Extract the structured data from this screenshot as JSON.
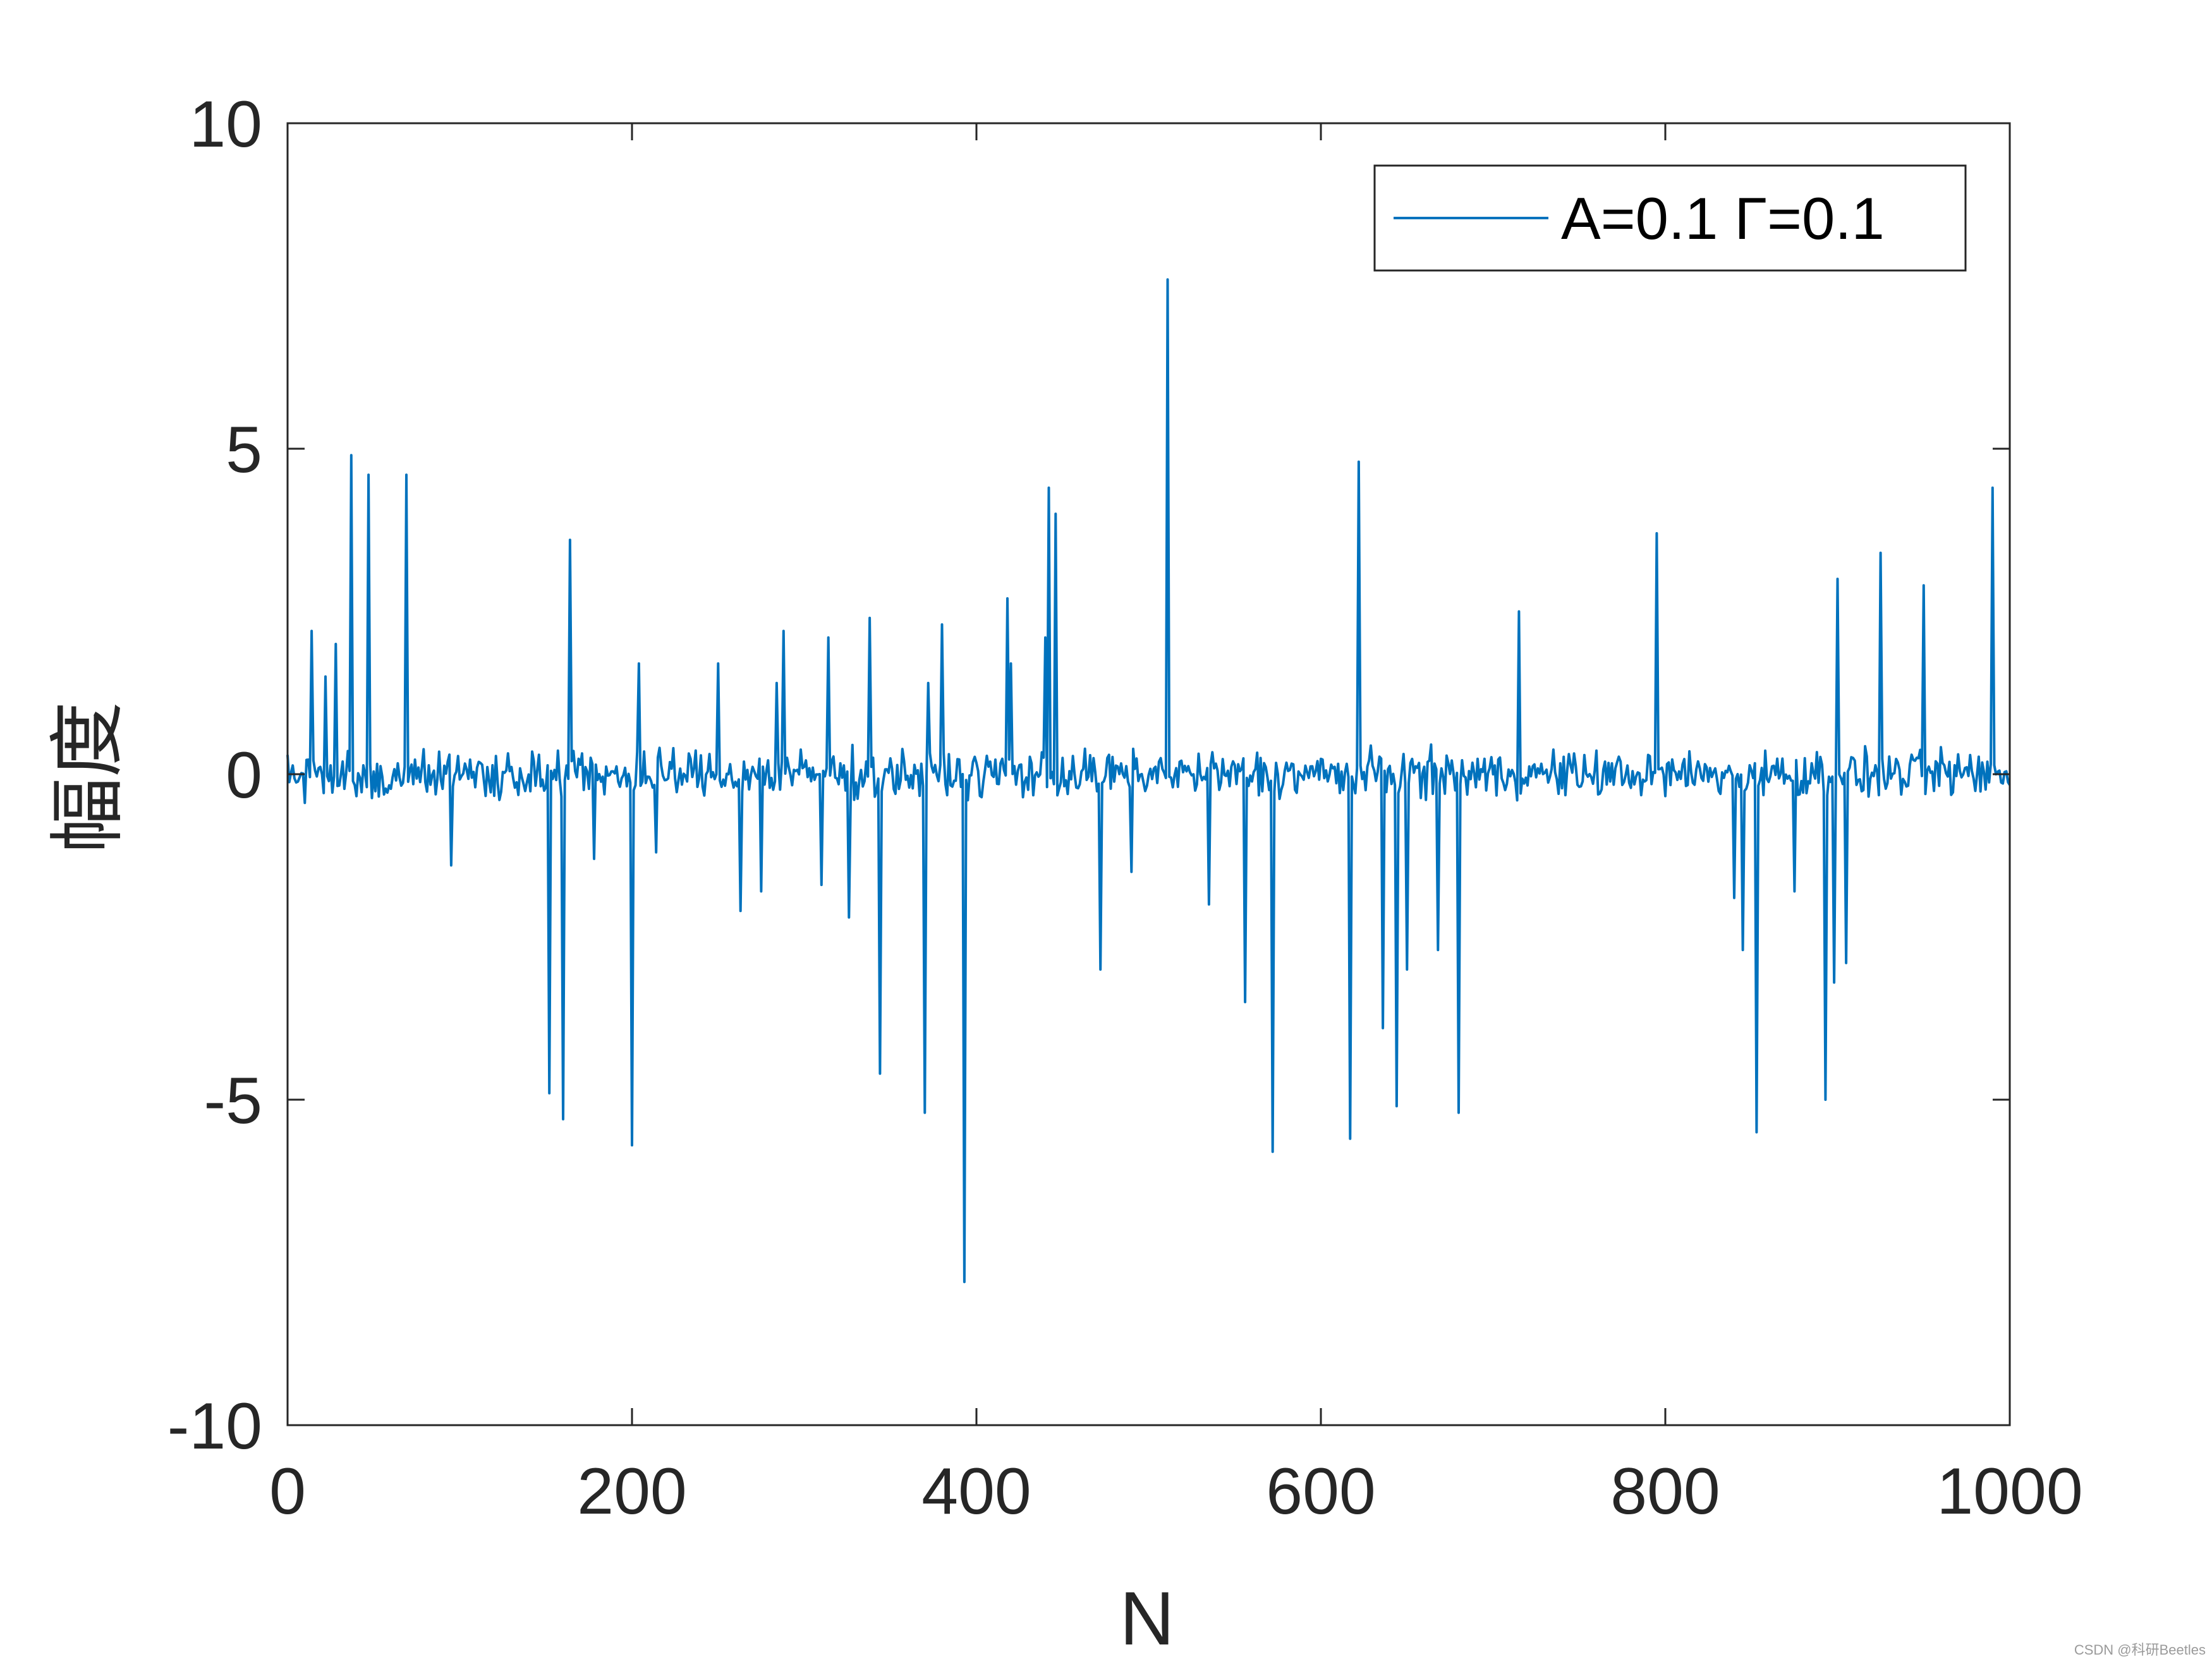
{
  "chart_data": {
    "type": "line",
    "xlabel": "N",
    "ylabel": "幅度",
    "xlim": [
      0,
      1000
    ],
    "ylim": [
      -10,
      10
    ],
    "xticks": [
      0,
      200,
      400,
      600,
      800,
      1000
    ],
    "yticks": [
      -10,
      -5,
      0,
      5,
      10
    ],
    "grid": false,
    "legend_position": "top-right",
    "series": [
      {
        "name": "A=0.1 Γ=0.1",
        "color": "#0072BD",
        "noise_amplitude": 0.3,
        "n_points": 1000,
        "spikes": [
          [
            14,
            2.2
          ],
          [
            22,
            1.5
          ],
          [
            28,
            2.0
          ],
          [
            37,
            4.9
          ],
          [
            47,
            4.6
          ],
          [
            69,
            4.6
          ],
          [
            95,
            -1.4
          ],
          [
            152,
            -4.9
          ],
          [
            160,
            -5.3
          ],
          [
            164,
            3.6
          ],
          [
            178,
            -1.3
          ],
          [
            200,
            -5.7
          ],
          [
            204,
            1.7
          ],
          [
            214,
            -1.2
          ],
          [
            250,
            1.7
          ],
          [
            263,
            -2.1
          ],
          [
            275,
            -1.8
          ],
          [
            284,
            1.4
          ],
          [
            288,
            2.2
          ],
          [
            310,
            -1.7
          ],
          [
            314,
            2.1
          ],
          [
            326,
            -2.2
          ],
          [
            338,
            2.4
          ],
          [
            344,
            -4.6
          ],
          [
            370,
            -5.2
          ],
          [
            372,
            1.4
          ],
          [
            380,
            2.3
          ],
          [
            393,
            -7.8
          ],
          [
            418,
            2.7
          ],
          [
            420,
            1.7
          ],
          [
            440,
            2.1
          ],
          [
            442,
            4.4
          ],
          [
            446,
            4.0
          ],
          [
            472,
            -3.0
          ],
          [
            490,
            -1.5
          ],
          [
            511,
            7.6
          ],
          [
            535,
            -2.0
          ],
          [
            556,
            -3.5
          ],
          [
            572,
            -5.8
          ],
          [
            617,
            -5.6
          ],
          [
            622,
            4.8
          ],
          [
            636,
            -3.9
          ],
          [
            644,
            -5.1
          ],
          [
            650,
            -3.0
          ],
          [
            668,
            -2.7
          ],
          [
            680,
            -5.2
          ],
          [
            715,
            2.5
          ],
          [
            795,
            3.7
          ],
          [
            840,
            -1.9
          ],
          [
            845,
            -2.7
          ],
          [
            853,
            -5.5
          ],
          [
            875,
            -1.8
          ],
          [
            893,
            -5.0
          ],
          [
            898,
            -3.2
          ],
          [
            900,
            3.0
          ],
          [
            905,
            -2.9
          ],
          [
            925,
            3.4
          ],
          [
            950,
            2.9
          ],
          [
            990,
            4.4
          ]
        ]
      }
    ]
  },
  "watermark": "CSDN @科研Beetles"
}
